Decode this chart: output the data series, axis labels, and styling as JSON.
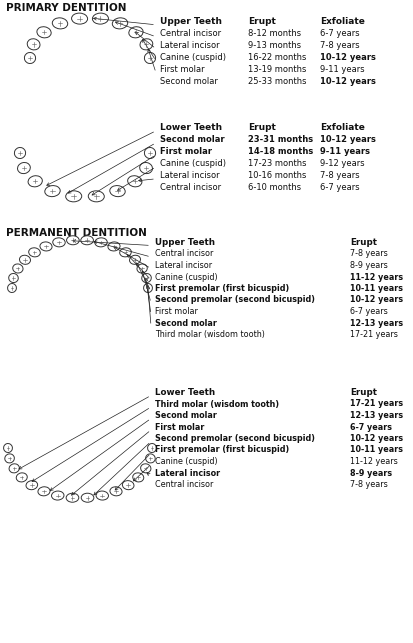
{
  "title_primary": "PRIMARY DENTITION",
  "title_permanent": "PERMANENT DENTITION",
  "bg_color": "#ffffff",
  "primary_upper": {
    "header": [
      "Upper Teeth",
      "Erupt",
      "Exfoliate"
    ],
    "rows": [
      [
        "Central incisor",
        "8-12 months",
        "6-7 years"
      ],
      [
        "Lateral incisor",
        "9-13 months",
        "7-8 years"
      ],
      [
        "Canine (cuspid)",
        "16-22 months",
        "10-12 years"
      ],
      [
        "First molar",
        "13-19 months",
        "9-11 years"
      ],
      [
        "Second molar",
        "25-33 months",
        "10-12 years"
      ]
    ],
    "bold_rows": [
      false,
      false,
      true,
      false,
      true
    ],
    "bold_cols": [
      [
        false,
        false,
        false
      ],
      [
        false,
        false,
        false
      ],
      [
        false,
        false,
        true
      ],
      [
        false,
        false,
        false
      ],
      [
        false,
        false,
        true
      ]
    ]
  },
  "primary_lower": {
    "header": [
      "Lower Teeth",
      "Erupt",
      "Exfoliate"
    ],
    "rows": [
      [
        "Second molar",
        "23-31 months",
        "10-12 years"
      ],
      [
        "First molar",
        "14-18 months",
        "9-11 years"
      ],
      [
        "Canine (cuspid)",
        "17-23 months",
        "9-12 years"
      ],
      [
        "Lateral incisor",
        "10-16 months",
        "7-8 years"
      ],
      [
        "Central incisor",
        "6-10 months",
        "6-7 years"
      ]
    ],
    "bold_cols": [
      [
        true,
        true,
        true
      ],
      [
        true,
        true,
        true
      ],
      [
        false,
        false,
        false
      ],
      [
        false,
        false,
        false
      ],
      [
        false,
        false,
        false
      ]
    ]
  },
  "permanent_upper": {
    "header": [
      "Upper Teeth",
      "Erupt"
    ],
    "rows": [
      [
        "Central incisor",
        "7-8 years"
      ],
      [
        "Lateral incisor",
        "8-9 years"
      ],
      [
        "Canine (cuspid)",
        "11-12 years"
      ],
      [
        "First premolar (first bicuspid)",
        "10-11 years"
      ],
      [
        "Second premolar (second bicuspid)",
        "10-12 years"
      ],
      [
        "First molar",
        "6-7 years"
      ],
      [
        "Second molar",
        "12-13 years"
      ],
      [
        "Third molar (wisdom tooth)",
        "17-21 years"
      ]
    ],
    "bold_cols": [
      [
        false,
        false
      ],
      [
        false,
        false
      ],
      [
        false,
        true
      ],
      [
        true,
        true
      ],
      [
        true,
        true
      ],
      [
        false,
        false
      ],
      [
        true,
        true
      ],
      [
        false,
        false
      ]
    ]
  },
  "permanent_lower": {
    "header": [
      "Lower Teeth",
      "Erupt"
    ],
    "rows": [
      [
        "Third molar (wisdom tooth)",
        "17-21 years"
      ],
      [
        "Second molar",
        "12-13 years"
      ],
      [
        "First molar",
        "6-7 years"
      ],
      [
        "Second premolar (second bicuspid)",
        "10-12 years"
      ],
      [
        "First premolar (first bicuspid)",
        "10-11 years"
      ],
      [
        "Canine (cuspid)",
        "11-12 years"
      ],
      [
        "Lateral incisor",
        "8-9 years"
      ],
      [
        "Central incisor",
        "7-8 years"
      ]
    ],
    "bold_cols": [
      [
        true,
        true
      ],
      [
        true,
        true
      ],
      [
        true,
        true
      ],
      [
        true,
        true
      ],
      [
        true,
        true
      ],
      [
        false,
        false
      ],
      [
        true,
        true
      ],
      [
        false,
        false
      ]
    ]
  }
}
